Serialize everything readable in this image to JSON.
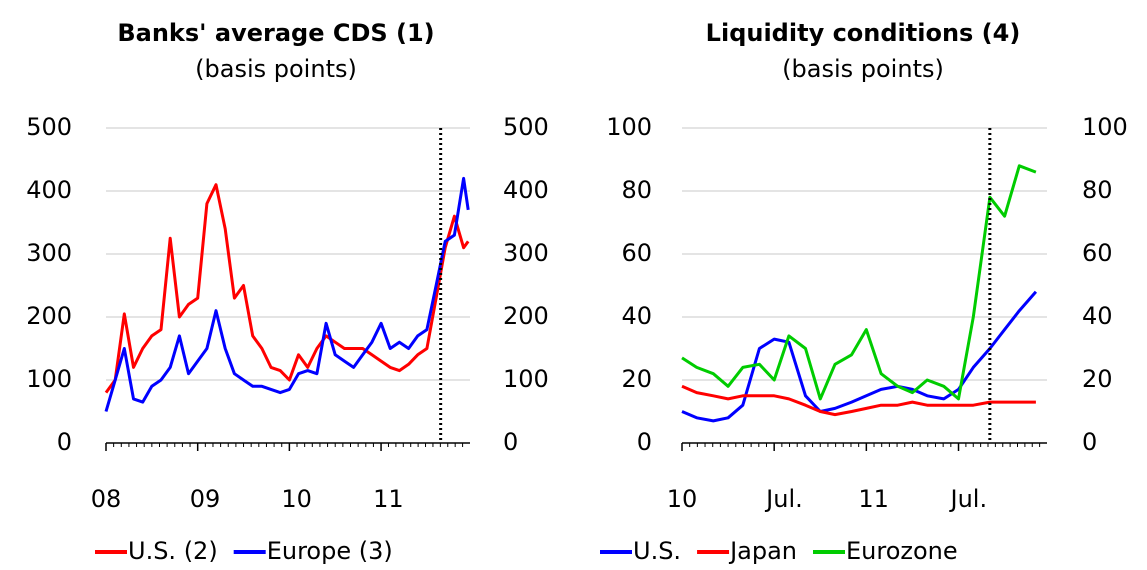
{
  "chart_data": [
    {
      "type": "line",
      "title": "Banks' average CDS (1)",
      "subtitle": "(basis points)",
      "x": [
        2008.0,
        2008.1,
        2008.2,
        2008.3,
        2008.4,
        2008.5,
        2008.6,
        2008.7,
        2008.8,
        2008.9,
        2009.0,
        2009.1,
        2009.2,
        2009.3,
        2009.4,
        2009.5,
        2009.6,
        2009.7,
        2009.8,
        2009.9,
        2010.0,
        2010.1,
        2010.2,
        2010.3,
        2010.4,
        2010.5,
        2010.6,
        2010.7,
        2010.8,
        2010.9,
        2011.0,
        2011.1,
        2011.2,
        2011.3,
        2011.4,
        2011.5,
        2011.6,
        2011.7,
        2011.8,
        2011.9,
        2011.95
      ],
      "series": [
        {
          "name": "U.S. (2)",
          "color": "#ff0000",
          "values": [
            80,
            100,
            205,
            120,
            150,
            170,
            180,
            325,
            200,
            220,
            230,
            380,
            410,
            340,
            230,
            250,
            170,
            150,
            120,
            115,
            100,
            140,
            120,
            150,
            170,
            160,
            150,
            150,
            150,
            140,
            130,
            120,
            115,
            125,
            140,
            150,
            230,
            310,
            360,
            310,
            320
          ]
        },
        {
          "name": "Europe (3)",
          "color": "#0000ff",
          "values": [
            50,
            100,
            150,
            70,
            65,
            90,
            100,
            120,
            170,
            110,
            130,
            150,
            210,
            150,
            110,
            100,
            90,
            90,
            85,
            80,
            85,
            110,
            115,
            110,
            190,
            140,
            130,
            120,
            140,
            160,
            190,
            150,
            160,
            150,
            170,
            180,
            250,
            320,
            330,
            420,
            370
          ]
        }
      ],
      "xlim": [
        2008.0,
        2011.97
      ],
      "xticks": [
        {
          "value": 2008,
          "label": "08"
        },
        {
          "value": 2009,
          "label": "09"
        },
        {
          "value": 2010,
          "label": "10"
        },
        {
          "value": 2011,
          "label": "11"
        }
      ],
      "ylim": [
        0,
        500
      ],
      "yticks": [
        0,
        100,
        200,
        300,
        400,
        500
      ],
      "vline": 2011.65,
      "grid": true
    },
    {
      "type": "line",
      "title": "Liquidity conditions (4)",
      "subtitle": "(basis points)",
      "x": [
        2010.0,
        2010.08,
        2010.17,
        2010.25,
        2010.33,
        2010.42,
        2010.5,
        2010.58,
        2010.67,
        2010.75,
        2010.83,
        2010.92,
        2011.0,
        2011.08,
        2011.17,
        2011.25,
        2011.33,
        2011.42,
        2011.5,
        2011.58,
        2011.67,
        2011.75,
        2011.83,
        2011.92
      ],
      "series": [
        {
          "name": "U.S.",
          "color": "#0000ff",
          "values": [
            10,
            8,
            7,
            8,
            12,
            30,
            33,
            32,
            15,
            10,
            11,
            13,
            15,
            17,
            18,
            17,
            15,
            14,
            17,
            24,
            30,
            36,
            42,
            48
          ]
        },
        {
          "name": "Japan",
          "color": "#ff0000",
          "values": [
            18,
            16,
            15,
            14,
            15,
            15,
            15,
            14,
            12,
            10,
            9,
            10,
            11,
            12,
            12,
            13,
            12,
            12,
            12,
            12,
            13,
            13,
            13,
            13
          ]
        },
        {
          "name": "Eurozone",
          "color": "#00cc00",
          "values": [
            27,
            24,
            22,
            18,
            24,
            25,
            20,
            34,
            30,
            14,
            25,
            28,
            36,
            22,
            18,
            16,
            20,
            18,
            14,
            40,
            78,
            72,
            88,
            86
          ]
        }
      ],
      "xlim": [
        2010.0,
        2011.98
      ],
      "xticks": [
        {
          "value": 2010,
          "label": "10"
        },
        {
          "value": 2010.5,
          "label": "Jul."
        },
        {
          "value": 2011,
          "label": "11"
        },
        {
          "value": 2011.5,
          "label": "Jul."
        }
      ],
      "ylim": [
        0,
        100
      ],
      "yticks": [
        0,
        20,
        40,
        60,
        80,
        100
      ],
      "vline": 2011.67,
      "grid": true
    }
  ]
}
